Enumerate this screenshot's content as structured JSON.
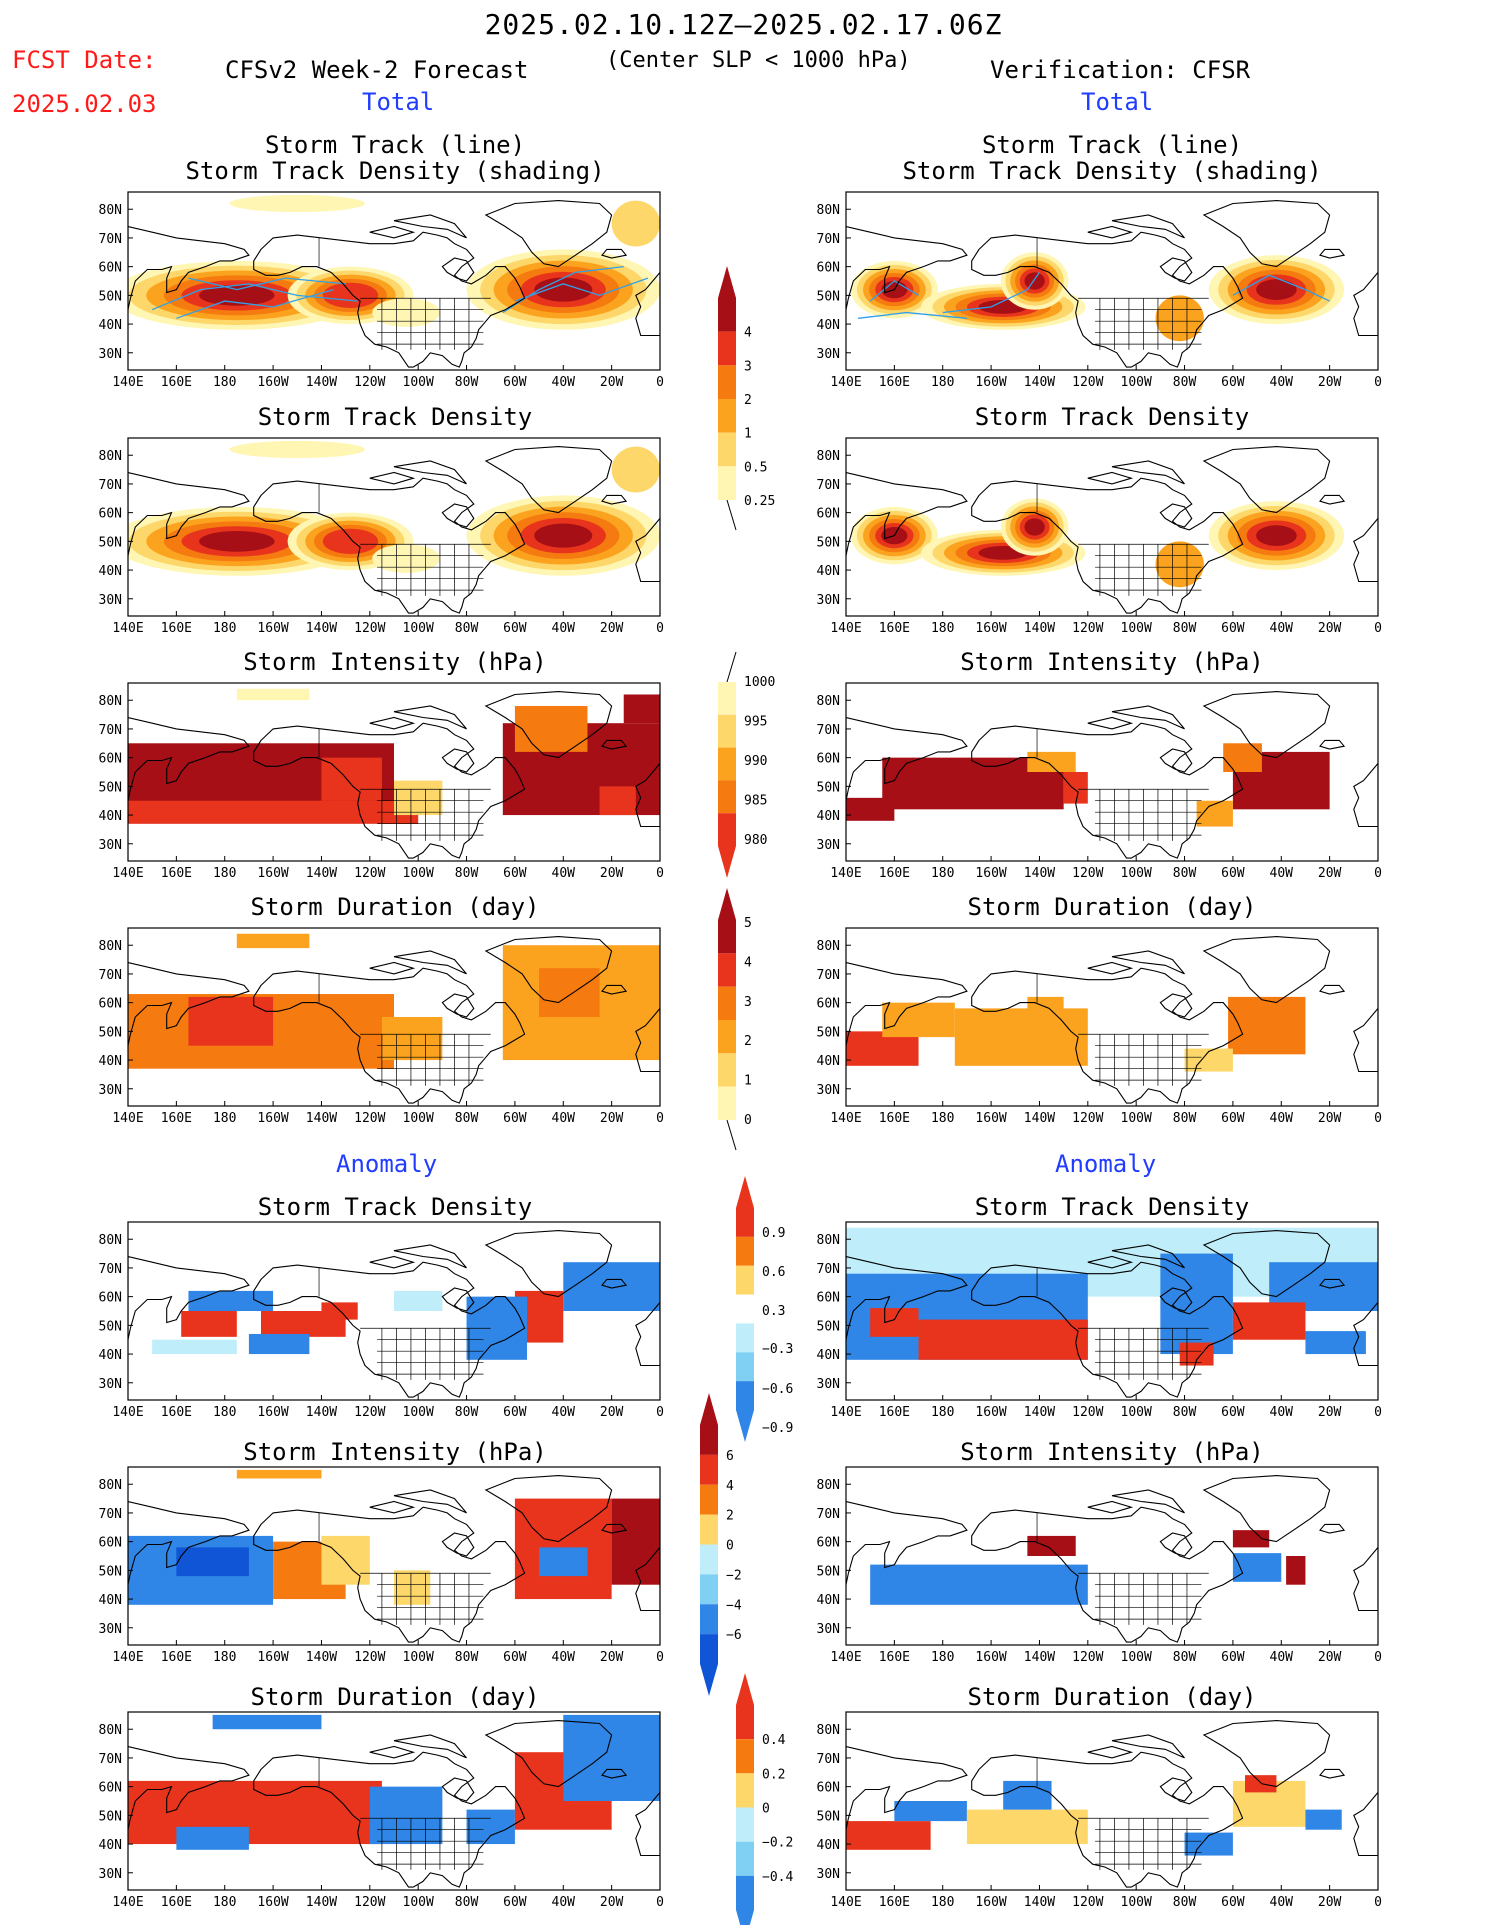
{
  "header": {
    "date_range": "2025.02.10.12Z–2025.02.17.06Z",
    "criterion": "(Center SLP < 1000 hPa)",
    "fcst_date_label": "FCST Date:",
    "fcst_date_value": "2025.02.03",
    "left_title": "CFSv2 Week-2 Forecast",
    "right_title": "Verification: CFSR"
  },
  "section_labels": {
    "total": "Total",
    "anomaly": "Anomaly"
  },
  "panel_titles": {
    "track_line": "Storm Track (line)",
    "track_shading": "Storm Track Density (shading)",
    "density": "Storm Track Density",
    "intensity": "Storm Intensity (hPa)",
    "duration": "Storm Duration (day)"
  },
  "axes": {
    "lat_ticks": [
      "80N",
      "70N",
      "60N",
      "50N",
      "40N",
      "30N"
    ],
    "lon_ticks": [
      "140E",
      "160E",
      "180",
      "160W",
      "140W",
      "120W",
      "100W",
      "80W",
      "60W",
      "40W",
      "20W",
      "0"
    ]
  },
  "colorbars": {
    "density_total": [
      "4",
      "3",
      "2",
      "1",
      "0.5",
      "0.25"
    ],
    "intensity_total": [
      "1000",
      "995",
      "990",
      "985",
      "980"
    ],
    "duration_total": [
      "5",
      "4",
      "3",
      "2",
      "1",
      "0"
    ],
    "density_anom": [
      "0.9",
      "0.6",
      "0.3",
      "−0.3",
      "−0.6",
      "−0.9"
    ],
    "intensity_anom": [
      "6",
      "4",
      "2",
      "0",
      "−2",
      "−4",
      "−6"
    ],
    "duration_anom": [
      "0.4",
      "0.2",
      "0",
      "−0.2",
      "−0.4"
    ]
  },
  "colors": {
    "dark_red": "#a50f15",
    "red": "#e8341c",
    "orange": "#f57a10",
    "amber": "#fba31e",
    "yellow": "#fdd76a",
    "pale_yellow": "#fff6b4",
    "pale_blue": "#bfeefa",
    "light_blue": "#7fd0f2",
    "blue": "#2f86e6",
    "dark_blue": "#0f55d6",
    "track_line": "#30a0e8"
  }
}
